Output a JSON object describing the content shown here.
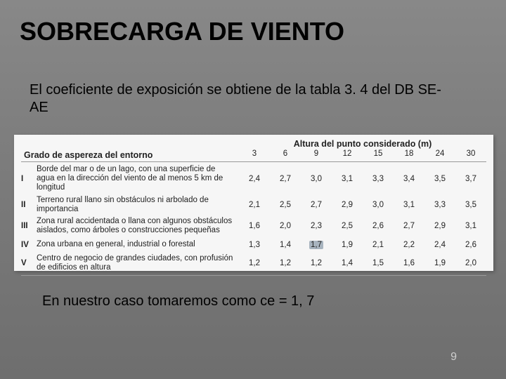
{
  "title": "SOBRECARGA DE VIENTO",
  "intro": "El coeficiente de exposición se obtiene de la tabla 3. 4 del DB SE-AE",
  "table": {
    "header_left": "Grado de aspereza del entorno",
    "header_right": "Altura del punto considerado (m)",
    "columns": [
      "3",
      "6",
      "9",
      "12",
      "15",
      "18",
      "24",
      "30"
    ],
    "rows": [
      {
        "roman": "I",
        "desc": "Borde del mar o de un lago, con una superficie de agua en la dirección del viento de al menos 5 km de longitud",
        "vals": [
          "2,4",
          "2,7",
          "3,0",
          "3,1",
          "3,3",
          "3,4",
          "3,5",
          "3,7"
        ]
      },
      {
        "roman": "II",
        "desc": "Terreno rural llano sin obstáculos ni arbolado de importancia",
        "vals": [
          "2,1",
          "2,5",
          "2,7",
          "2,9",
          "3,0",
          "3,1",
          "3,3",
          "3,5"
        ]
      },
      {
        "roman": "III",
        "desc": "Zona rural accidentada o llana con algunos obstáculos aislados, como árboles o construcciones pequeñas",
        "vals": [
          "1,6",
          "2,0",
          "2,3",
          "2,5",
          "2,6",
          "2,7",
          "2,9",
          "3,1"
        ]
      },
      {
        "roman": "IV",
        "desc": "Zona urbana en general, industrial o forestal",
        "vals": [
          "1,3",
          "1,4",
          "1,7",
          "1,9",
          "2,1",
          "2,2",
          "2,4",
          "2,6"
        ]
      },
      {
        "roman": "V",
        "desc": "Centro de negocio de grandes ciudades, con profusión de edificios en altura",
        "vals": [
          "1,2",
          "1,2",
          "1,2",
          "1,4",
          "1,5",
          "1,6",
          "1,9",
          "2,0"
        ]
      }
    ],
    "highlight": {
      "row": 3,
      "col": 2
    }
  },
  "conclusion": "En nuestro caso tomaremos como ce = 1, 7",
  "page_number": "9",
  "colors": {
    "bg_top": "#888888",
    "bg_bottom": "#6e6e6e",
    "table_bg": "#f6f6f6",
    "highlight_bg": "#a8b4bf",
    "pagenum_color": "#cfcfcf"
  }
}
